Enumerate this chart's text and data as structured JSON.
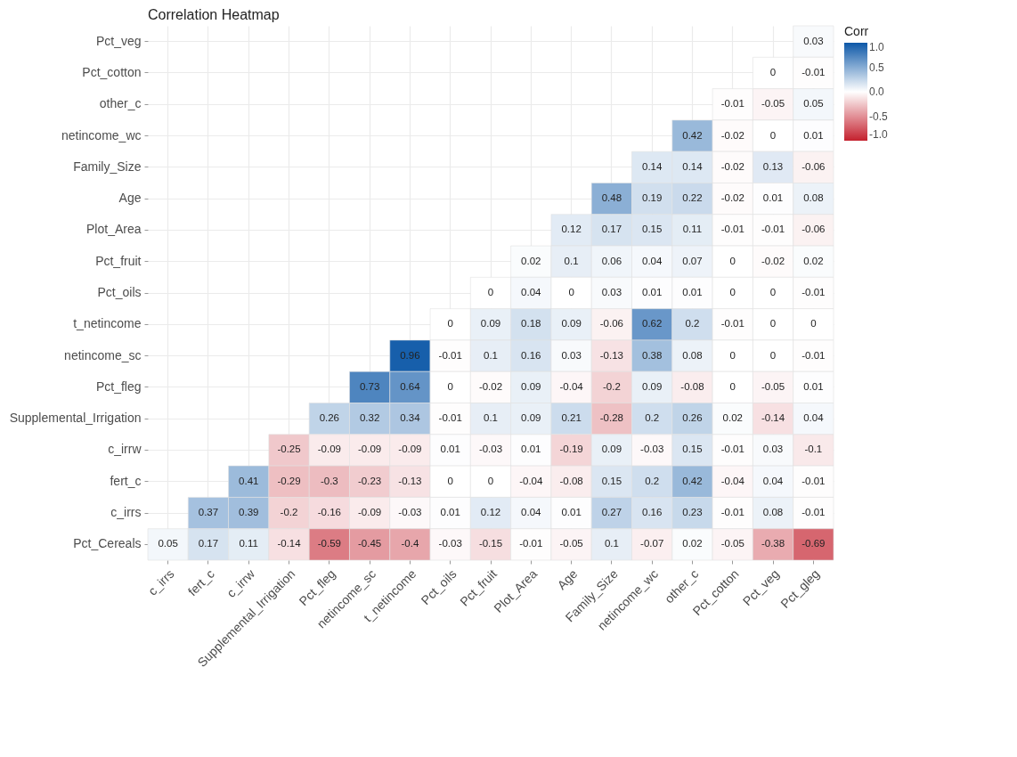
{
  "chart_data": {
    "type": "heatmap",
    "title": "Correlation Heatmap",
    "legend_title": "Corr",
    "categories": [
      "c_irrs",
      "fert_c",
      "c_irrw",
      "Supplemental_Irrigation",
      "Pct_fleg",
      "netincome_sc",
      "t_netincome",
      "Pct_oils",
      "Pct_fruit",
      "Plot_Area",
      "Age",
      "Family_Size",
      "netincome_wc",
      "other_c",
      "Pct_cotton",
      "Pct_veg",
      "Pct_gleg"
    ],
    "y_categories": [
      "Pct_veg",
      "Pct_cotton",
      "other_c",
      "netincome_wc",
      "Family_Size",
      "Age",
      "Plot_Area",
      "Pct_fruit",
      "Pct_oils",
      "t_netincome",
      "netincome_sc",
      "Pct_fleg",
      "Supplemental_Irrigation",
      "c_irrw",
      "fert_c",
      "c_irrs",
      "Pct_Cereals"
    ],
    "cells": [
      [
        null,
        null,
        null,
        null,
        null,
        null,
        null,
        null,
        null,
        null,
        null,
        null,
        null,
        null,
        null,
        null,
        0.03
      ],
      [
        null,
        null,
        null,
        null,
        null,
        null,
        null,
        null,
        null,
        null,
        null,
        null,
        null,
        null,
        null,
        0,
        -0.01
      ],
      [
        null,
        null,
        null,
        null,
        null,
        null,
        null,
        null,
        null,
        null,
        null,
        null,
        null,
        null,
        -0.01,
        -0.05,
        0.05
      ],
      [
        null,
        null,
        null,
        null,
        null,
        null,
        null,
        null,
        null,
        null,
        null,
        null,
        null,
        0.42,
        -0.02,
        0,
        0.01
      ],
      [
        null,
        null,
        null,
        null,
        null,
        null,
        null,
        null,
        null,
        null,
        null,
        null,
        0.14,
        0.14,
        -0.02,
        0.13,
        -0.06
      ],
      [
        null,
        null,
        null,
        null,
        null,
        null,
        null,
        null,
        null,
        null,
        null,
        0.48,
        0.19,
        0.22,
        -0.02,
        0.01,
        0.08
      ],
      [
        null,
        null,
        null,
        null,
        null,
        null,
        null,
        null,
        null,
        null,
        0.12,
        0.17,
        0.15,
        0.11,
        -0.01,
        -0.01,
        -0.06
      ],
      [
        null,
        null,
        null,
        null,
        null,
        null,
        null,
        null,
        null,
        0.02,
        0.1,
        0.06,
        0.04,
        0.07,
        0,
        -0.02,
        0.02
      ],
      [
        null,
        null,
        null,
        null,
        null,
        null,
        null,
        null,
        0,
        0.04,
        0,
        0.03,
        0.01,
        0.01,
        0,
        0,
        -0.01
      ],
      [
        null,
        null,
        null,
        null,
        null,
        null,
        null,
        0,
        0.09,
        0.18,
        0.09,
        -0.06,
        0.62,
        0.2,
        -0.01,
        0,
        0
      ],
      [
        null,
        null,
        null,
        null,
        null,
        null,
        0.96,
        -0.01,
        0.1,
        0.16,
        0.03,
        -0.13,
        0.38,
        0.08,
        0,
        0,
        -0.01
      ],
      [
        null,
        null,
        null,
        null,
        null,
        0.73,
        0.64,
        0,
        -0.02,
        0.09,
        -0.04,
        -0.2,
        0.09,
        -0.08,
        0,
        -0.05,
        0.01
      ],
      [
        null,
        null,
        null,
        null,
        0.26,
        0.32,
        0.34,
        -0.01,
        0.1,
        0.09,
        0.21,
        -0.28,
        0.2,
        0.26,
        0.02,
        -0.14,
        0.04
      ],
      [
        null,
        null,
        null,
        -0.25,
        -0.09,
        -0.09,
        -0.09,
        0.01,
        -0.03,
        0.01,
        -0.19,
        0.09,
        -0.03,
        0.15,
        -0.01,
        0.03,
        -0.1
      ],
      [
        null,
        null,
        0.41,
        -0.29,
        -0.3,
        -0.23,
        -0.13,
        0,
        0,
        -0.04,
        -0.08,
        0.15,
        0.2,
        0.42,
        -0.04,
        0.04,
        -0.01
      ],
      [
        null,
        0.37,
        0.39,
        -0.2,
        -0.16,
        -0.09,
        -0.03,
        0.01,
        0.12,
        0.04,
        0.01,
        0.27,
        0.16,
        0.23,
        -0.01,
        0.08,
        -0.01
      ],
      [
        0.05,
        0.17,
        0.11,
        -0.14,
        -0.59,
        -0.45,
        -0.4,
        -0.03,
        -0.15,
        -0.01,
        -0.05,
        0.1,
        -0.07,
        0.02,
        -0.05,
        -0.38,
        -0.69
      ]
    ],
    "clim": [
      -1,
      1
    ],
    "cticks": [
      {
        "value": 1,
        "label": "1.0"
      },
      {
        "value": 0.5,
        "label": "0.5"
      },
      {
        "value": 0,
        "label": "0.0"
      },
      {
        "value": -0.5,
        "label": "-0.5"
      },
      {
        "value": -1,
        "label": "-1.0"
      }
    ],
    "data_labels": true,
    "grid": true
  }
}
